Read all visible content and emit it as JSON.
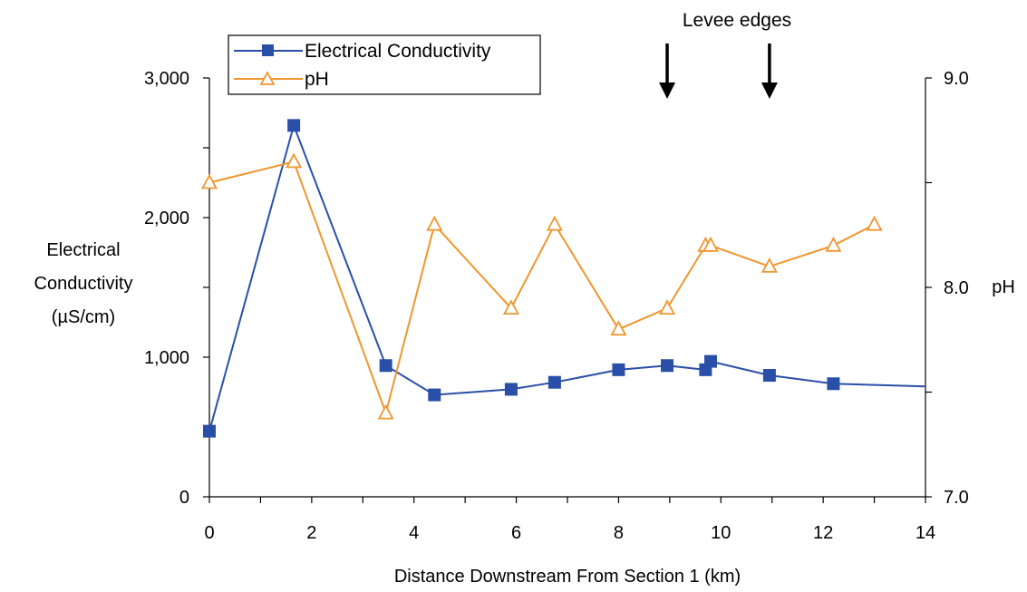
{
  "chart_data": {
    "type": "line",
    "xlabel": "Distance Downstream From Section 1 (km)",
    "ylabel_left": [
      "Electrical",
      "Conductivity",
      "(µS/cm)"
    ],
    "ylabel_right": "pH",
    "xlim": [
      0,
      14
    ],
    "ylim_left": [
      0,
      3000
    ],
    "ylim_right": [
      7.0,
      9.0
    ],
    "x_ticks": [
      "0",
      "2",
      "4",
      "6",
      "8",
      "10",
      "12",
      "14"
    ],
    "y_left_ticks": [
      "0",
      "1,000",
      "2,000",
      "3,000"
    ],
    "y_right_ticks": [
      "7.0",
      "8.0",
      "9.0"
    ],
    "grid": false,
    "legend_position": "top-left",
    "series": [
      {
        "name": "Electrical Conductivity",
        "axis": "left",
        "color": "#2a4fa8",
        "marker": "square",
        "x": [
          0,
          1.65,
          3.45,
          4.4,
          5.9,
          6.75,
          8.0,
          8.95,
          9.7,
          9.8,
          10.95,
          12.2,
          14.0
        ],
        "y": [
          470,
          2660,
          940,
          730,
          770,
          820,
          910,
          940,
          910,
          970,
          870,
          810,
          790
        ],
        "marker_count": 12
      },
      {
        "name": "pH",
        "axis": "right",
        "color": "#f0962e",
        "marker": "triangle-open",
        "x": [
          0,
          1.65,
          3.45,
          4.4,
          5.9,
          6.75,
          8.0,
          8.95,
          9.7,
          9.8,
          10.95,
          12.2,
          13.0
        ],
        "y": [
          8.5,
          8.6,
          7.4,
          8.3,
          7.9,
          8.3,
          7.8,
          7.9,
          8.2,
          8.2,
          8.1,
          8.2,
          8.3
        ]
      }
    ],
    "annotations": [
      {
        "text": "Levee edges",
        "arrows_x": [
          8.95,
          10.95
        ]
      }
    ]
  }
}
